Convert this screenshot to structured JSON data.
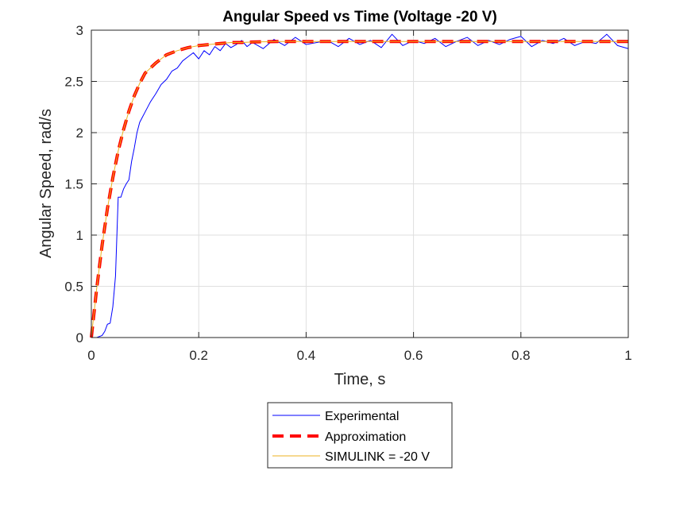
{
  "chart_data": {
    "type": "line",
    "title": "Angular Speed vs Time (Voltage -20 V)",
    "xlabel": "Time, s",
    "ylabel": "Angular Speed, rad/s",
    "xlim": [
      0,
      1
    ],
    "ylim": [
      0,
      3
    ],
    "xticks": [
      "0",
      "0.2",
      "0.4",
      "0.6",
      "0.8",
      "1"
    ],
    "yticks": [
      "0",
      "0.5",
      "1",
      "1.5",
      "2",
      "2.5",
      "3"
    ],
    "grid": true,
    "legend_position": "bottom-center-outside",
    "series": [
      {
        "name": "Experimental",
        "color": "#0000ff",
        "style": "solid",
        "x": [
          0,
          0.01,
          0.02,
          0.025,
          0.03,
          0.035,
          0.04,
          0.045,
          0.05,
          0.055,
          0.06,
          0.065,
          0.07,
          0.075,
          0.08,
          0.085,
          0.09,
          0.095,
          0.1,
          0.11,
          0.12,
          0.13,
          0.14,
          0.15,
          0.16,
          0.17,
          0.18,
          0.19,
          0.2,
          0.21,
          0.22,
          0.23,
          0.24,
          0.25,
          0.26,
          0.27,
          0.28,
          0.29,
          0.3,
          0.32,
          0.34,
          0.36,
          0.38,
          0.4,
          0.42,
          0.44,
          0.46,
          0.48,
          0.5,
          0.52,
          0.54,
          0.56,
          0.58,
          0.6,
          0.62,
          0.64,
          0.66,
          0.68,
          0.7,
          0.72,
          0.74,
          0.76,
          0.78,
          0.8,
          0.82,
          0.84,
          0.86,
          0.88,
          0.9,
          0.92,
          0.94,
          0.96,
          0.98,
          1.0
        ],
        "y": [
          0,
          0,
          0.02,
          0.06,
          0.13,
          0.14,
          0.3,
          0.6,
          1.37,
          1.37,
          1.45,
          1.5,
          1.54,
          1.72,
          1.85,
          2.0,
          2.1,
          2.15,
          2.2,
          2.3,
          2.38,
          2.47,
          2.52,
          2.6,
          2.63,
          2.7,
          2.74,
          2.78,
          2.72,
          2.8,
          2.76,
          2.84,
          2.8,
          2.87,
          2.83,
          2.86,
          2.9,
          2.84,
          2.88,
          2.82,
          2.91,
          2.85,
          2.93,
          2.86,
          2.88,
          2.9,
          2.84,
          2.92,
          2.86,
          2.9,
          2.83,
          2.96,
          2.85,
          2.9,
          2.87,
          2.92,
          2.84,
          2.89,
          2.93,
          2.85,
          2.9,
          2.86,
          2.91,
          2.94,
          2.84,
          2.9,
          2.87,
          2.92,
          2.85,
          2.89,
          2.87,
          2.96,
          2.85,
          2.82
        ]
      },
      {
        "name": "Approximation",
        "color": "#ff0000",
        "style": "dashed",
        "x": [
          0,
          0.01,
          0.02,
          0.03,
          0.04,
          0.05,
          0.06,
          0.07,
          0.08,
          0.09,
          0.1,
          0.12,
          0.14,
          0.16,
          0.18,
          0.2,
          0.22,
          0.24,
          0.26,
          0.28,
          0.3,
          0.35,
          0.4,
          0.5,
          0.6,
          0.7,
          0.8,
          0.9,
          1.0
        ],
        "y": [
          0,
          0.48,
          0.9,
          1.26,
          1.56,
          1.82,
          2.03,
          2.21,
          2.36,
          2.48,
          2.58,
          2.68,
          2.76,
          2.8,
          2.83,
          2.85,
          2.86,
          2.87,
          2.88,
          2.88,
          2.885,
          2.89,
          2.89,
          2.89,
          2.89,
          2.89,
          2.89,
          2.89,
          2.89
        ]
      },
      {
        "name": "SIMULINK = -20 V",
        "color": "#edb120",
        "style": "solid",
        "x": [
          0,
          0.01,
          0.02,
          0.03,
          0.04,
          0.05,
          0.06,
          0.07,
          0.08,
          0.09,
          0.1,
          0.12,
          0.14,
          0.16,
          0.18,
          0.2,
          0.22,
          0.24,
          0.26,
          0.28,
          0.3,
          0.35,
          0.4,
          0.5,
          0.6,
          0.7,
          0.8,
          0.9,
          1.0
        ],
        "y": [
          0,
          0.48,
          0.9,
          1.26,
          1.56,
          1.82,
          2.03,
          2.21,
          2.36,
          2.48,
          2.58,
          2.68,
          2.76,
          2.8,
          2.83,
          2.85,
          2.86,
          2.87,
          2.88,
          2.88,
          2.885,
          2.89,
          2.89,
          2.89,
          2.89,
          2.89,
          2.89,
          2.89,
          2.89
        ]
      }
    ]
  }
}
